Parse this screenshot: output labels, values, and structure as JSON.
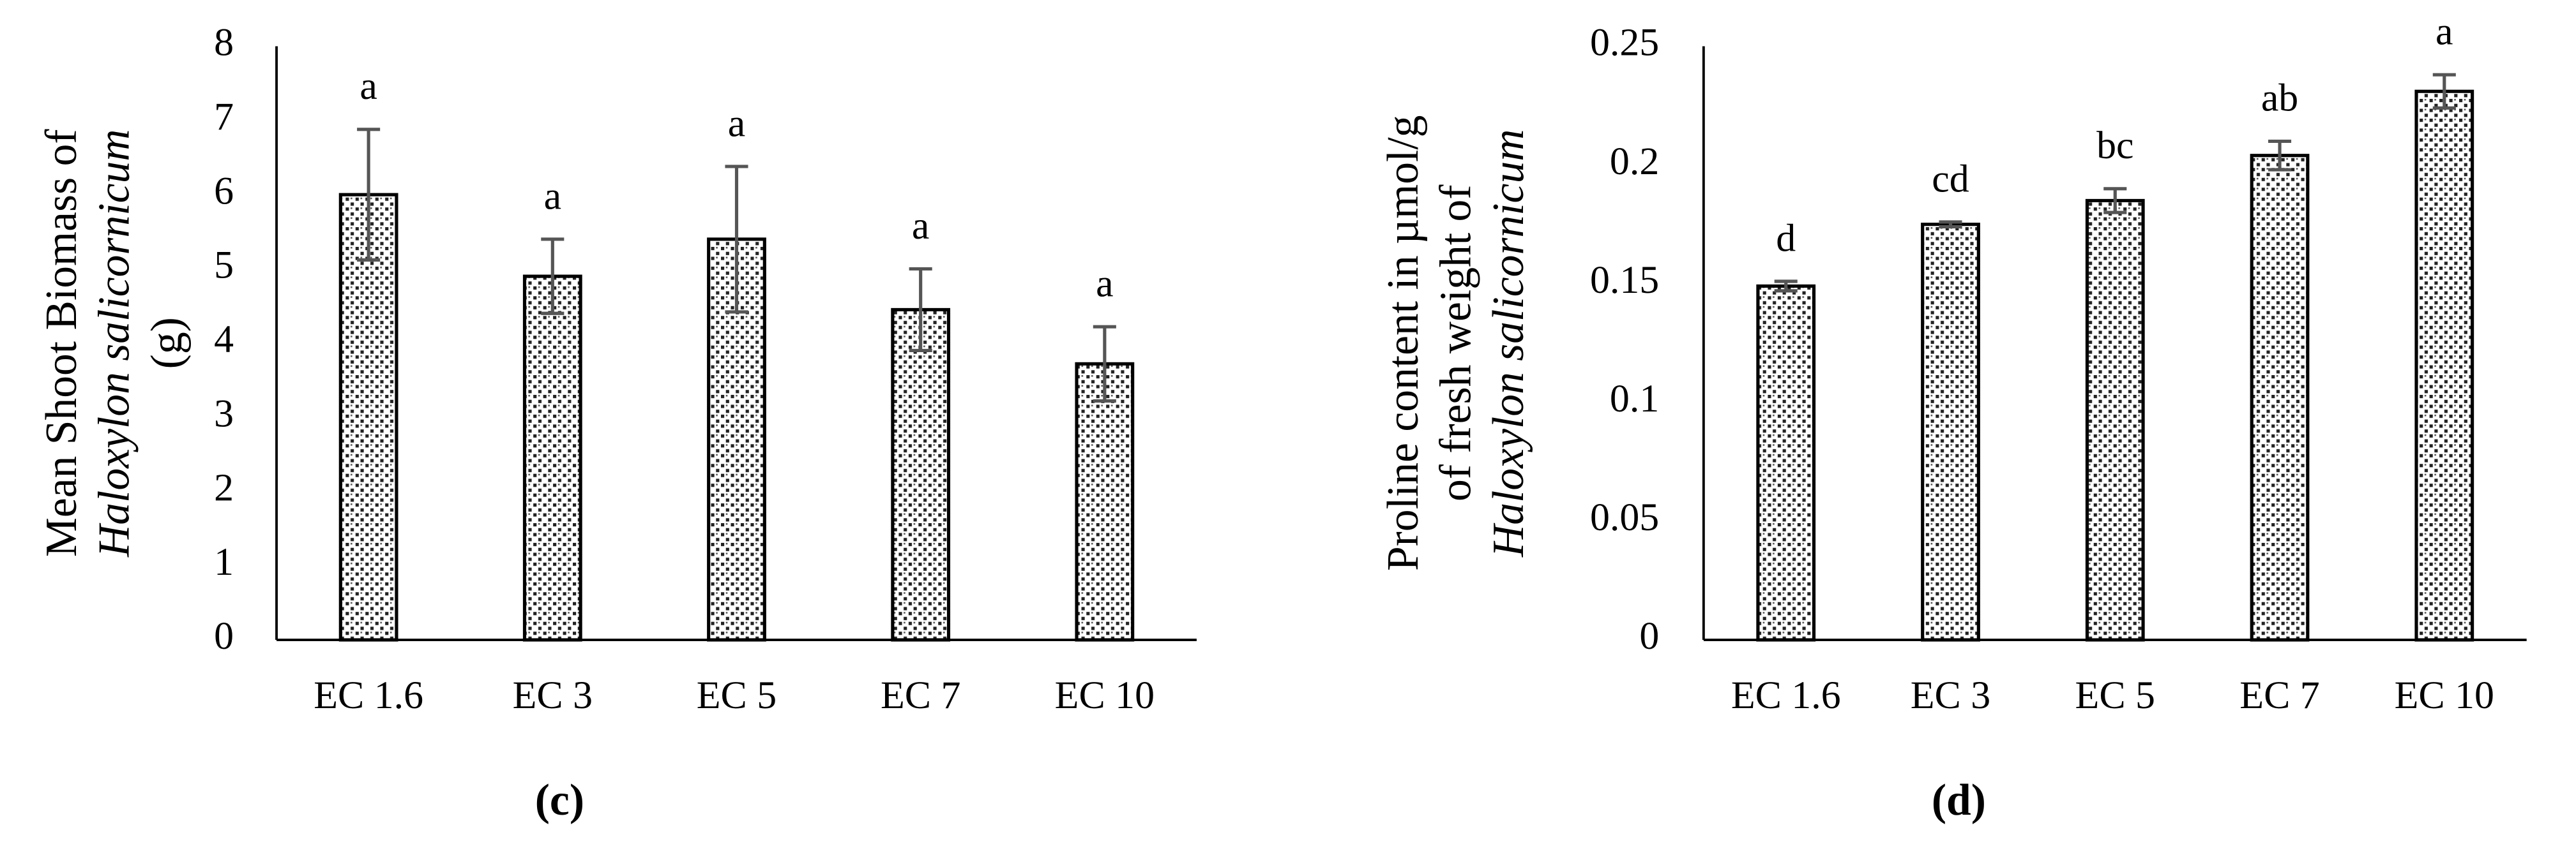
{
  "chart_data": [
    {
      "type": "bar",
      "panel_label": "(c)",
      "ylabel": [
        "Mean Shoot Biomass of",
        "Haloxylon salicornicum",
        "(g)"
      ],
      "ylabel_italic": [
        false,
        true,
        false
      ],
      "categories": [
        "EC 1.6",
        "EC 3",
        "EC 5",
        "EC 7",
        "EC 10"
      ],
      "values": [
        6.0,
        4.9,
        5.4,
        4.45,
        3.72
      ],
      "errors": [
        0.88,
        0.5,
        0.98,
        0.55,
        0.5
      ],
      "annotations": [
        "a",
        "a",
        "a",
        "a",
        "a"
      ],
      "ylim": [
        0,
        8
      ],
      "yticks": [
        0,
        1,
        2,
        3,
        4,
        5,
        6,
        7,
        8
      ]
    },
    {
      "type": "bar",
      "panel_label": "(d)",
      "ylabel": [
        "Proline content in µmol/g",
        "of fresh weight of",
        "Haloxylon salicornicum"
      ],
      "ylabel_italic": [
        false,
        false,
        true
      ],
      "categories": [
        "EC 1.6",
        "EC 3",
        "EC 5",
        "EC 7",
        "EC 10"
      ],
      "values": [
        0.149,
        0.175,
        0.185,
        0.204,
        0.231
      ],
      "errors": [
        0.002,
        0.001,
        0.005,
        0.006,
        0.007
      ],
      "annotations": [
        "d",
        "cd",
        "bc",
        "ab",
        "a"
      ],
      "ylim": [
        0,
        0.25
      ],
      "yticks": [
        0,
        0.05,
        0.1,
        0.15,
        0.2,
        0.25
      ]
    }
  ]
}
